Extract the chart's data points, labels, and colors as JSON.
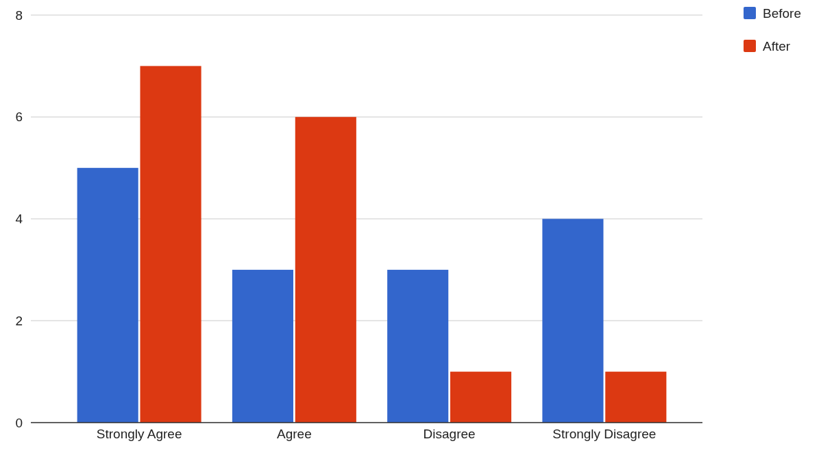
{
  "chart_data": {
    "type": "bar",
    "categories": [
      "Strongly Agree",
      "Agree",
      "Disagree",
      "Strongly Disagree"
    ],
    "series": [
      {
        "name": "Before",
        "color": "#3366cc",
        "values": [
          5,
          3,
          3,
          4
        ]
      },
      {
        "name": "After",
        "color": "#dc3912",
        "values": [
          7,
          6,
          1,
          1
        ]
      }
    ],
    "ylim": [
      0,
      8
    ],
    "yticks": [
      0,
      2,
      4,
      6,
      8
    ],
    "grid": "y",
    "legend": "top right"
  }
}
